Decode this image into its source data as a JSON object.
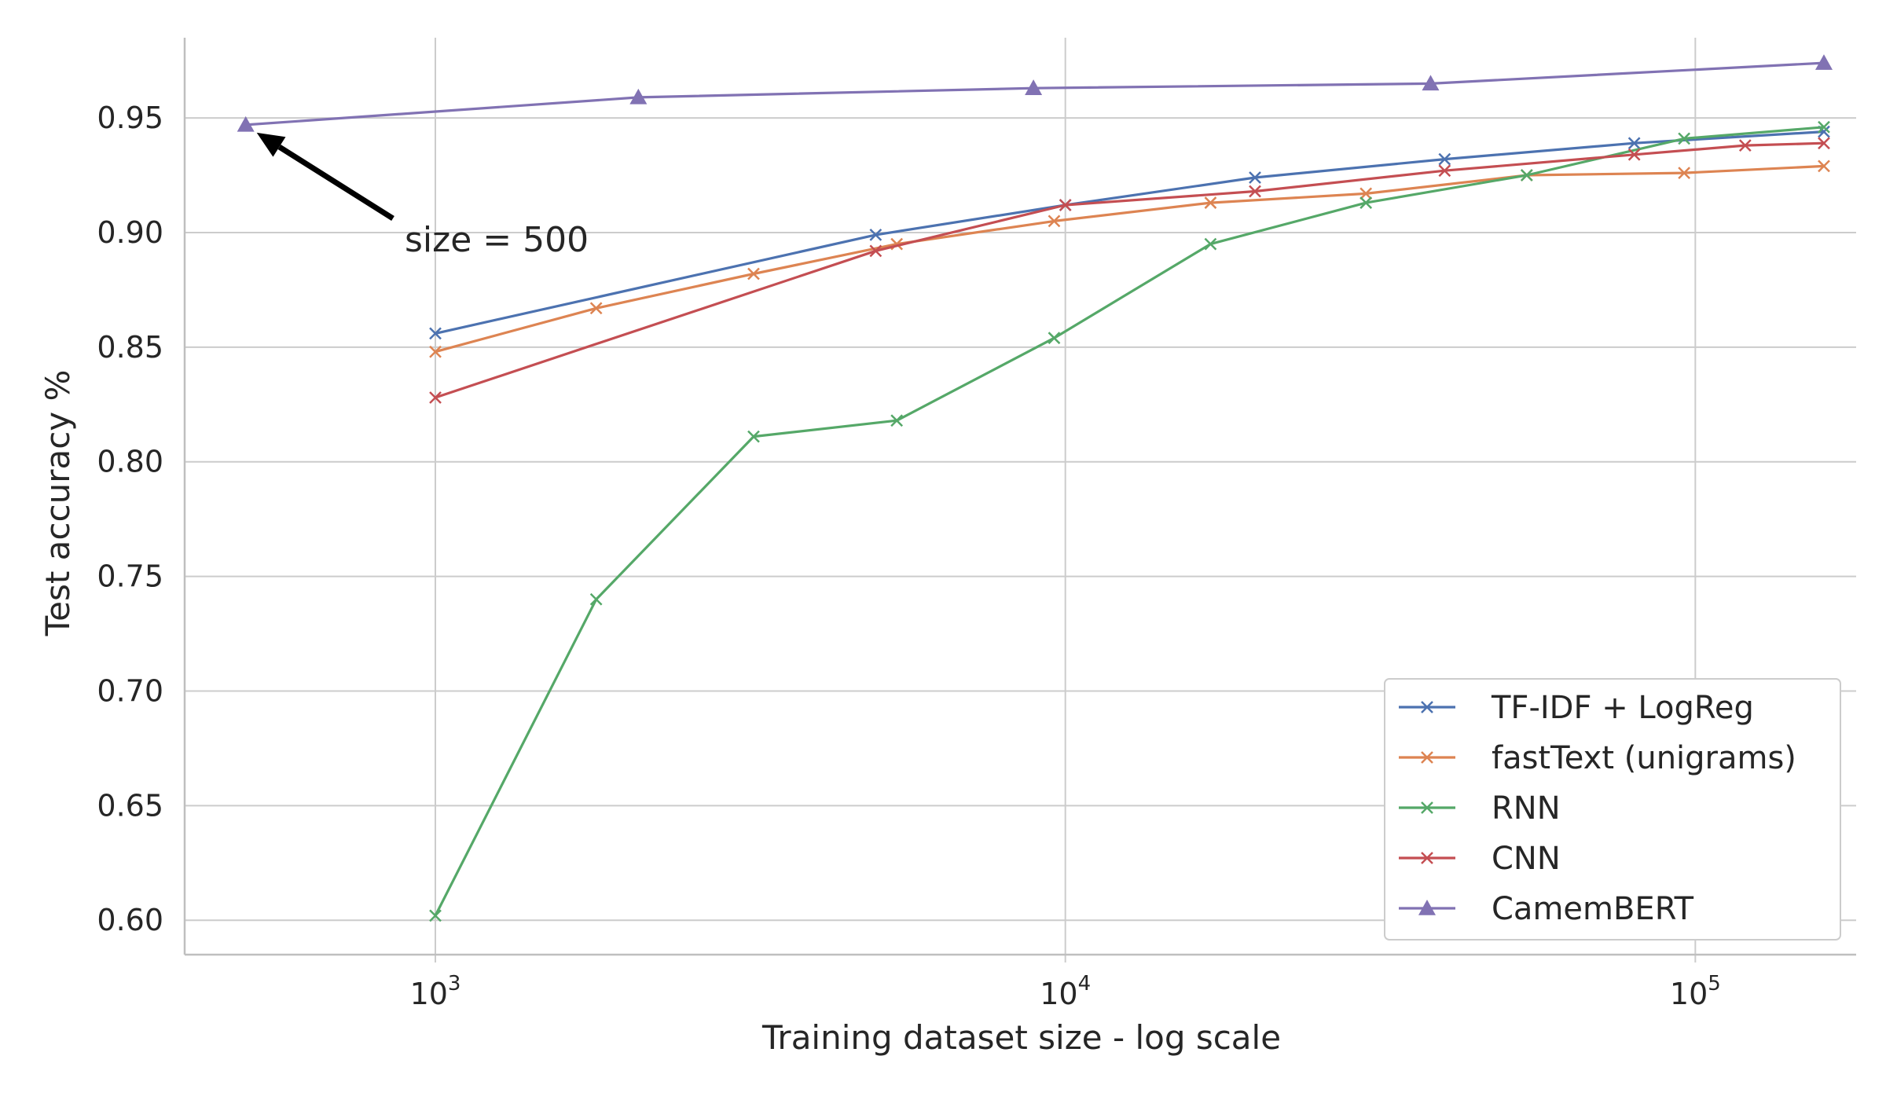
{
  "chart_data": {
    "type": "line",
    "title": "",
    "xlabel": "Training dataset size - log scale",
    "ylabel": "Test accuracy %",
    "xscale": "log",
    "xlim": [
      400,
      180000
    ],
    "ylim": [
      0.585,
      0.985
    ],
    "xticks": [
      {
        "value": 1000,
        "base": "10",
        "exp": "3"
      },
      {
        "value": 10000,
        "base": "10",
        "exp": "4"
      },
      {
        "value": 100000,
        "base": "10",
        "exp": "5"
      }
    ],
    "yticks": [
      0.6,
      0.65,
      0.7,
      0.75,
      0.8,
      0.85,
      0.9,
      0.95
    ],
    "ytick_labels": [
      "0.60",
      "0.65",
      "0.70",
      "0.75",
      "0.80",
      "0.85",
      "0.90",
      "0.95"
    ],
    "grid": true,
    "legend_position": "bottom-right",
    "series": [
      {
        "name": "TF-IDF + LogReg",
        "color": "#4c72b0",
        "marker": "x",
        "x": [
          1000,
          5000,
          10000,
          20000,
          40000,
          80000,
          160000
        ],
        "y": [
          0.856,
          0.899,
          0.912,
          0.924,
          0.932,
          0.939,
          0.944
        ]
      },
      {
        "name": "fastText (unigrams)",
        "color": "#dd8452",
        "marker": "x",
        "x": [
          1000,
          1800,
          3200,
          5400,
          9600,
          17000,
          30000,
          54000,
          96000,
          160000
        ],
        "y": [
          0.848,
          0.867,
          0.882,
          0.895,
          0.905,
          0.913,
          0.917,
          0.925,
          0.926,
          0.929
        ]
      },
      {
        "name": "RNN",
        "color": "#55a868",
        "marker": "x",
        "x": [
          1000,
          1800,
          3200,
          5400,
          9600,
          17000,
          30000,
          54000,
          96000,
          160000
        ],
        "y": [
          0.602,
          0.74,
          0.811,
          0.818,
          0.854,
          0.895,
          0.913,
          0.925,
          0.941,
          0.946
        ]
      },
      {
        "name": "CNN",
        "color": "#c44e52",
        "marker": "x",
        "x": [
          1000,
          5000,
          10000,
          20000,
          40000,
          80000,
          120000,
          160000
        ],
        "y": [
          0.828,
          0.892,
          0.912,
          0.918,
          0.927,
          0.934,
          0.938,
          0.939
        ]
      },
      {
        "name": "CamemBERT",
        "color": "#8172b3",
        "marker": "triangle",
        "x": [
          500,
          2100,
          8900,
          38000,
          160000
        ],
        "y": [
          0.947,
          0.959,
          0.963,
          0.965,
          0.974
        ]
      }
    ],
    "annotations": [
      {
        "text": "size = 500",
        "target_x": 500,
        "target_y": 0.947
      }
    ]
  }
}
